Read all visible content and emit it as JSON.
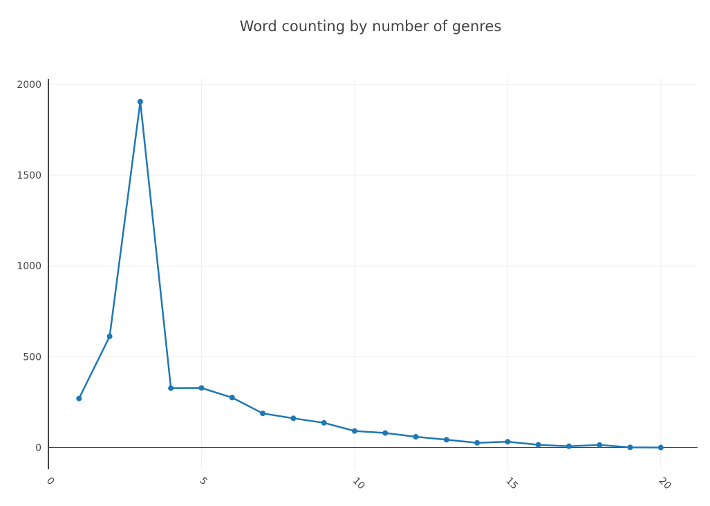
{
  "chart_data": {
    "type": "line",
    "title": "Word counting by number of genres",
    "xlabel": "",
    "ylabel": "",
    "xlim": [
      0,
      21.2
    ],
    "ylim": [
      -120,
      2030
    ],
    "x_ticks": [
      "0",
      "5",
      "10",
      "15",
      "20"
    ],
    "y_ticks": [
      "0",
      "500",
      "1000",
      "1500",
      "2000"
    ],
    "grid": true,
    "legend": "none",
    "series": [
      {
        "color": "#1f77b4",
        "x": [
          1,
          2,
          3,
          4,
          5,
          6,
          7,
          8,
          9,
          10,
          11,
          12,
          13,
          14,
          15,
          16,
          17,
          18,
          19,
          20
        ],
        "values": [
          270,
          612,
          1905,
          327,
          328,
          275,
          188,
          161,
          136,
          91,
          80,
          59,
          43,
          26,
          32,
          15,
          7,
          14,
          1,
          0
        ]
      }
    ]
  }
}
